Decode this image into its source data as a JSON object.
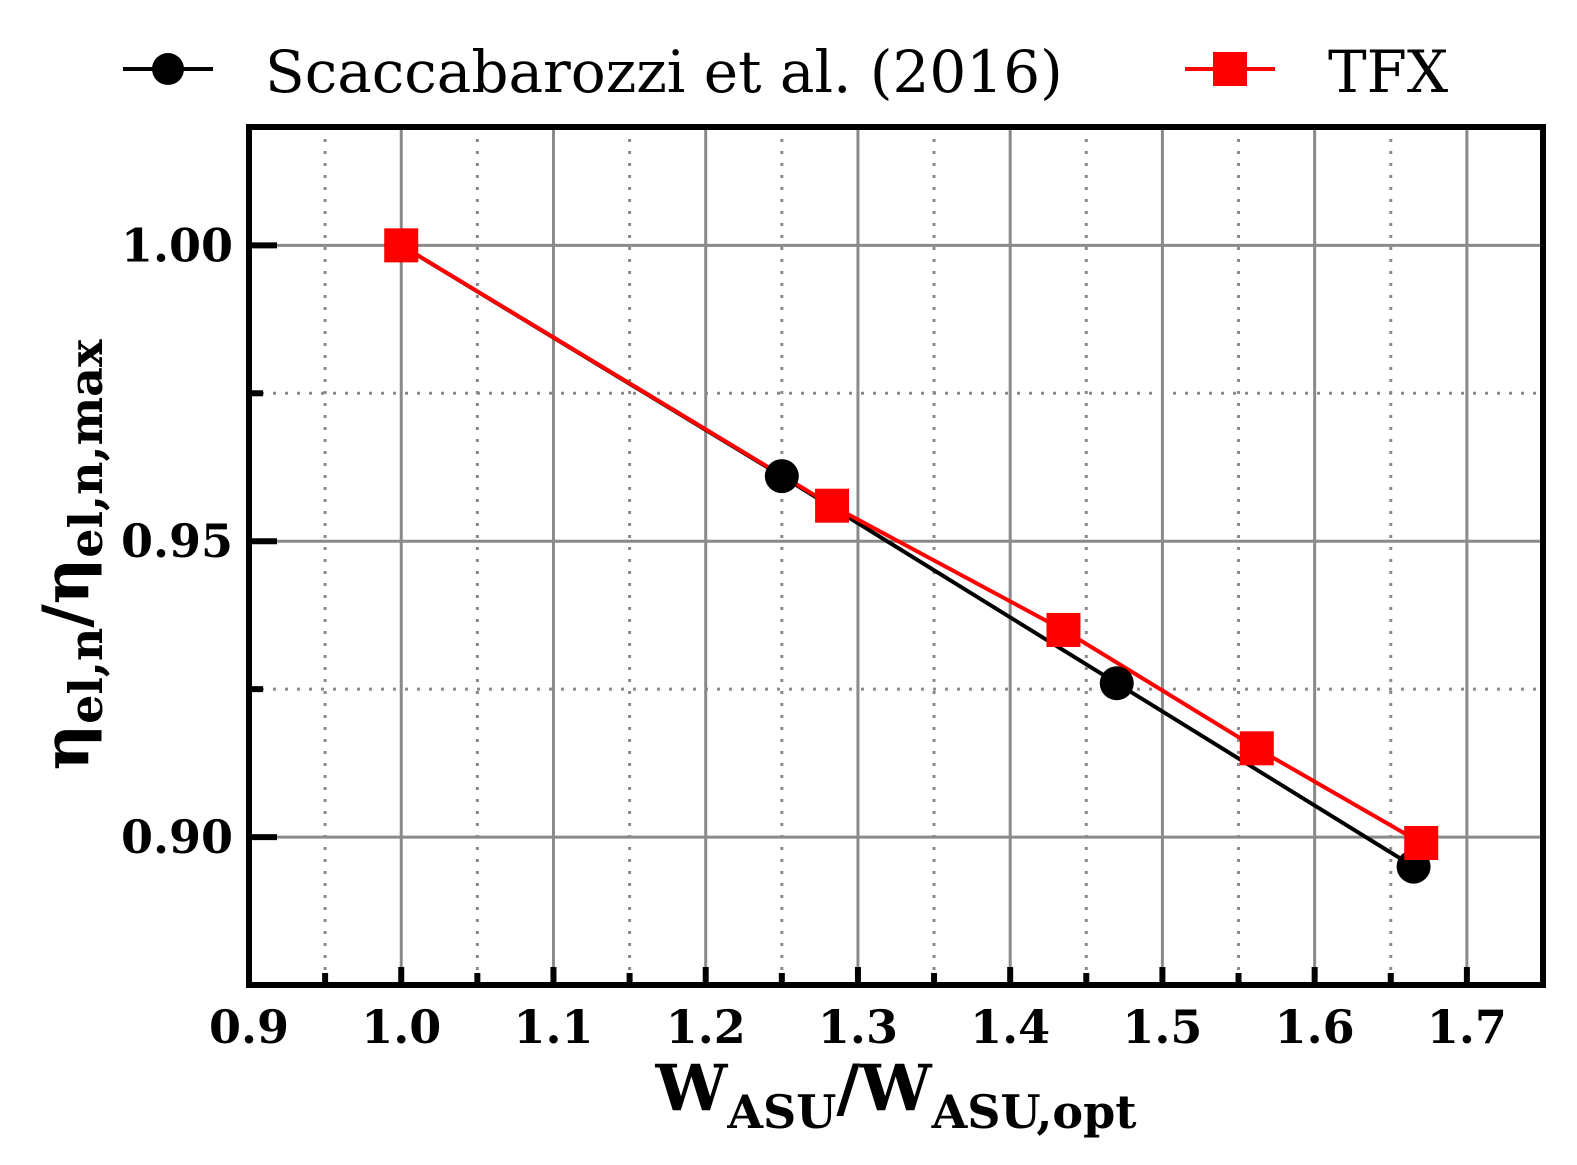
{
  "chart_data": {
    "type": "line",
    "xlabel": {
      "main": "W",
      "sub": "ASU",
      "sep": "/",
      "main2": "W",
      "sub2": "ASU,opt"
    },
    "ylabel": {
      "main": "η",
      "sub": "el,n",
      "sep": "/",
      "main2": "η",
      "sub2": "el,n,max"
    },
    "xlim": [
      0.9,
      1.75
    ],
    "ylim": [
      0.875,
      1.02
    ],
    "xticks": [
      0.9,
      1.0,
      1.1,
      1.2,
      1.3,
      1.4,
      1.5,
      1.6,
      1.7
    ],
    "xtick_labels": [
      "0.9",
      "1.0",
      "1.1",
      "1.2",
      "1.3",
      "1.4",
      "1.5",
      "1.6",
      "1.7"
    ],
    "yticks": [
      0.9,
      0.95,
      1.0
    ],
    "ytick_labels": [
      "0.90",
      "0.95",
      "1.00"
    ],
    "grid": true,
    "legend_position": "top",
    "series": [
      {
        "name": "Scaccabarozzi et al. (2016)",
        "color": "#000000",
        "marker": "circle",
        "x": [
          1.0,
          1.25,
          1.47,
          1.665
        ],
        "y": [
          1.0,
          0.961,
          0.926,
          0.895
        ]
      },
      {
        "name": "TFX",
        "color": "#ff0000",
        "marker": "square",
        "x": [
          1.0,
          1.283,
          1.435,
          1.562,
          1.67
        ],
        "y": [
          1.0,
          0.956,
          0.935,
          0.915,
          0.899
        ]
      }
    ]
  }
}
